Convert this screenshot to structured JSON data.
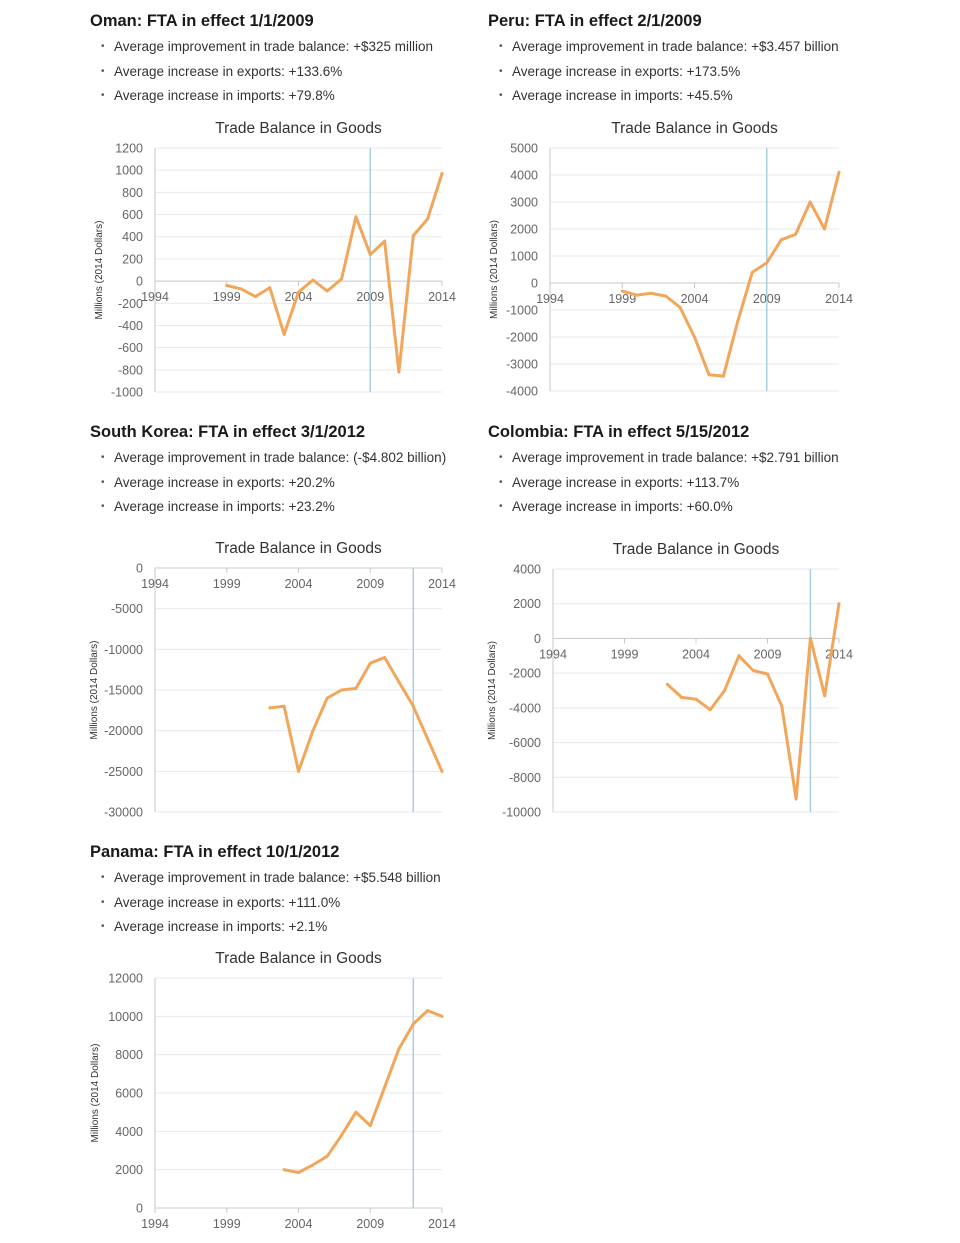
{
  "colors": {
    "line": "#f2a65a",
    "fta_line": "#a8d0de",
    "grid": "#e9e9e9",
    "axis": "#c8c8c8"
  },
  "panels": [
    {
      "heading": "Oman: FTA in effect 1/1/2009",
      "bullets": [
        "Average improvement in trade balance: +$325 million",
        "Average increase in exports: +133.6%",
        "Average increase in imports: +79.8%"
      ]
    },
    {
      "heading": "Peru: FTA in effect 2/1/2009",
      "bullets": [
        "Average improvement in trade balance: +$3.457 billion",
        "Average increase in exports: +173.5%",
        "Average increase in imports: +45.5%"
      ]
    },
    {
      "heading": "South Korea: FTA in effect 3/1/2012",
      "bullets": [
        "Average improvement in trade balance: (-$4.802 billion)",
        "Average increase in exports: +20.2%",
        "Average increase in imports: +23.2%"
      ]
    },
    {
      "heading": "Colombia: FTA in effect 5/15/2012",
      "bullets": [
        "Average improvement in trade balance: +$2.791 billion",
        "Average increase in exports: +113.7%",
        "Average increase in imports: +60.0%"
      ]
    },
    {
      "heading": "Panama: FTA in effect 10/1/2012",
      "bullets": [
        "Average improvement in trade balance: +$5.548 billion",
        "Average increase in exports: +111.0%",
        "Average increase in imports: +2.1%"
      ]
    }
  ],
  "chart_data": [
    {
      "type": "line",
      "title": "Trade Balance in Goods",
      "ylabel": "Millions (2014 Dollars)",
      "xlabel": "",
      "xlim": [
        1994,
        2014
      ],
      "xticks": [
        1994,
        1999,
        2004,
        2009,
        2014
      ],
      "ylim": [
        -1000,
        1200
      ],
      "yticks": [
        -1000,
        -800,
        -600,
        -400,
        -200,
        0,
        200,
        400,
        600,
        800,
        1000,
        1200
      ],
      "grid": true,
      "fta_year": 2009,
      "x": [
        1999,
        2000,
        2001,
        2002,
        2003,
        2004,
        2005,
        2006,
        2007,
        2008,
        2009,
        2010,
        2011,
        2012,
        2013,
        2014
      ],
      "y": [
        -40,
        -70,
        -140,
        -60,
        -480,
        -100,
        10,
        -90,
        20,
        580,
        240,
        360,
        -820,
        410,
        560,
        970
      ]
    },
    {
      "type": "line",
      "title": "Trade Balance in Goods",
      "ylabel": "Millions (2014 Dollars)",
      "xlabel": "",
      "xlim": [
        1994,
        2014
      ],
      "xticks": [
        1994,
        1999,
        2004,
        2009,
        2014
      ],
      "ylim": [
        -4000,
        5000
      ],
      "yticks": [
        -4000,
        -3000,
        -2000,
        -1000,
        0,
        1000,
        2000,
        3000,
        4000,
        5000
      ],
      "grid": true,
      "fta_year": 2009,
      "x": [
        1999,
        2000,
        2001,
        2002,
        2003,
        2004,
        2005,
        2006,
        2007,
        2008,
        2009,
        2010,
        2011,
        2012,
        2013,
        2014
      ],
      "y": [
        -300,
        -450,
        -380,
        -480,
        -900,
        -2000,
        -3400,
        -3450,
        -1400,
        400,
        750,
        1600,
        1800,
        3000,
        2000,
        4100
      ]
    },
    {
      "type": "line",
      "title": "Trade Balance in Goods",
      "ylabel": "Millions (2014 Dollars)",
      "xlabel": "",
      "xlim": [
        1994,
        2014
      ],
      "xticks": [
        1994,
        1999,
        2004,
        2009,
        2014
      ],
      "ylim": [
        -30000,
        0
      ],
      "yticks": [
        -30000,
        -25000,
        -20000,
        -15000,
        -10000,
        -5000,
        0
      ],
      "grid": true,
      "fta_year": 2012,
      "x": [
        2002,
        2003,
        2004,
        2005,
        2006,
        2007,
        2008,
        2009,
        2010,
        2011,
        2012,
        2013,
        2014
      ],
      "y": [
        -17200,
        -17000,
        -25000,
        -20000,
        -16000,
        -15000,
        -14800,
        -11700,
        -11000,
        -14000,
        -17000,
        -21000,
        -25000
      ]
    },
    {
      "type": "line",
      "title": "Trade Balance in Goods",
      "ylabel": "Millions (2014 Dollars)",
      "xlabel": "",
      "xlim": [
        1994,
        2014
      ],
      "xticks": [
        1994,
        1999,
        2004,
        2009,
        2014
      ],
      "ylim": [
        -10000,
        4000
      ],
      "yticks": [
        -10000,
        -8000,
        -6000,
        -4000,
        -2000,
        0,
        2000,
        4000
      ],
      "grid": true,
      "fta_year": 2012,
      "x": [
        2002,
        2003,
        2004,
        2005,
        2006,
        2007,
        2008,
        2009,
        2010,
        2011,
        2012,
        2013,
        2014
      ],
      "y": [
        -2650,
        -3400,
        -3500,
        -4100,
        -3000,
        -1000,
        -1850,
        -2050,
        -3900,
        -9250,
        0,
        -3300,
        2000
      ]
    },
    {
      "type": "line",
      "title": "Trade Balance in Goods",
      "ylabel": "Millions (2014 Dollars)",
      "xlabel": "",
      "xlim": [
        1994,
        2014
      ],
      "xticks": [
        1994,
        1999,
        2004,
        2009,
        2014
      ],
      "ylim": [
        0,
        12000
      ],
      "yticks": [
        0,
        2000,
        4000,
        6000,
        8000,
        10000,
        12000
      ],
      "grid": true,
      "fta_year": 2012,
      "x": [
        2003,
        2004,
        2005,
        2006,
        2007,
        2008,
        2009,
        2010,
        2011,
        2012,
        2013,
        2014
      ],
      "y": [
        2000,
        1850,
        2250,
        2700,
        3800,
        5000,
        4300,
        6300,
        8300,
        9600,
        10300,
        10000
      ]
    }
  ]
}
